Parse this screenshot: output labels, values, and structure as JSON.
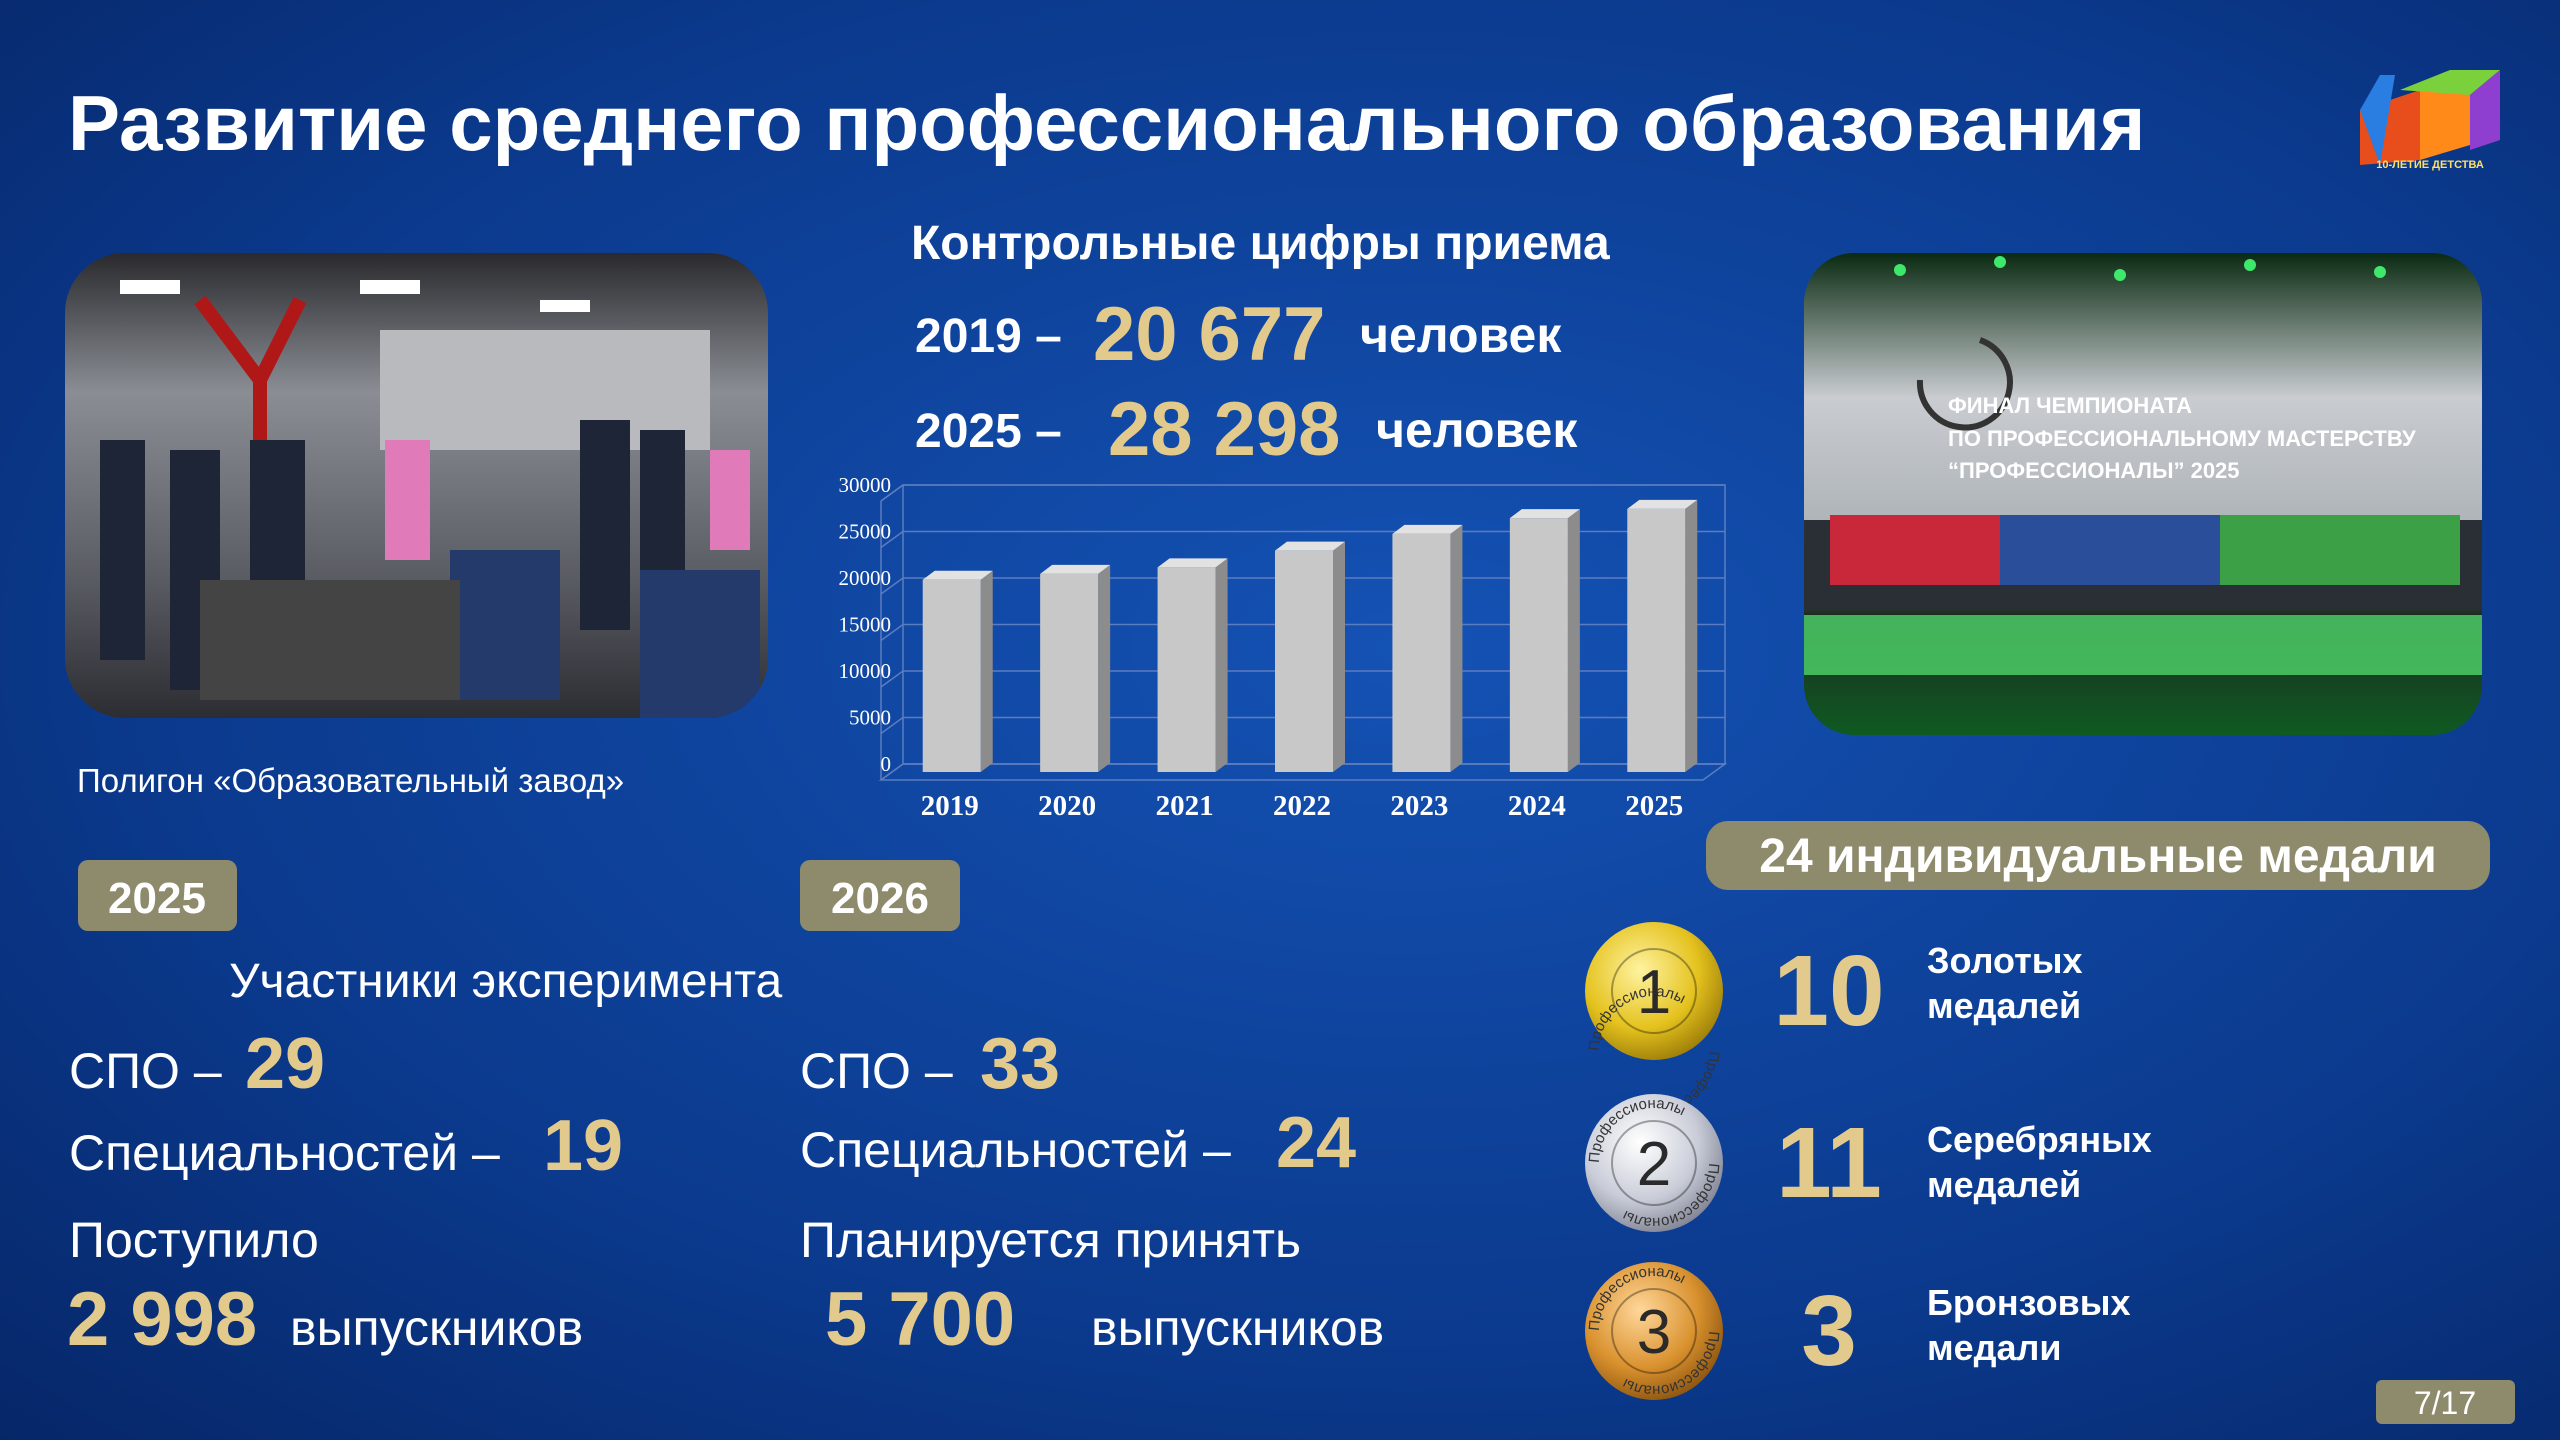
{
  "title": "Развитие среднего профессионального образования",
  "logo_text": "10-ЛЕТИЕ ДЕТСТВА",
  "photo_left": {
    "caption": "Полигон «Образовательный завод»"
  },
  "photo_right": {
    "screen_text": [
      "ФИНАЛ ЧЕМПИОНАТА",
      "ПО ПРОФЕССИОНАЛЬНОМУ МАСТЕРСТВУ",
      "“ПРОФЕССИОНАЛЫ” 2025"
    ]
  },
  "admissions": {
    "heading": "Контрольные цифры приема",
    "rows": [
      {
        "year": "2019 –",
        "value": "20 677",
        "unit": "человек"
      },
      {
        "year": "2025 –",
        "value": "28 298",
        "unit": "человек"
      }
    ]
  },
  "chart_data": {
    "type": "bar",
    "categories": [
      "2019",
      "2020",
      "2021",
      "2022",
      "2023",
      "2024",
      "2025"
    ],
    "values": [
      20677,
      21300,
      22000,
      23800,
      25600,
      27300,
      28298
    ],
    "color": "#c8c8c8",
    "ylim": [
      0,
      30000
    ],
    "yticks": [
      0,
      5000,
      10000,
      15000,
      20000,
      25000,
      30000
    ],
    "grid": true
  },
  "block_2025": {
    "badge": "2025",
    "subtitle": "Участники эксперимента",
    "spo": {
      "label": "СПО –",
      "value": "29"
    },
    "specialties": {
      "label": "Специальностей –",
      "value": "19"
    },
    "admitted": {
      "label": "Поступило",
      "value": "2 998",
      "unit": "выпускников"
    }
  },
  "block_2026": {
    "badge": "2026",
    "spo": {
      "label": "СПО –",
      "value": "33"
    },
    "specialties": {
      "label": "Специальностей –",
      "value": "24"
    },
    "planned": {
      "label": "Планируется принять",
      "value": "5 700",
      "unit": "выпускников"
    }
  },
  "medals": {
    "heading": "24 индивидуальные медали",
    "ring_text": "Профессионалы",
    "items": [
      {
        "place": "1",
        "count": "10",
        "label": [
          "Золотых",
          "медалей"
        ]
      },
      {
        "place": "2",
        "count": "11",
        "label": [
          "Серебряных",
          "медалей"
        ]
      },
      {
        "place": "3",
        "count": "3",
        "label": [
          "Бронзовых",
          "медали"
        ]
      }
    ]
  },
  "page_number": "7/17"
}
